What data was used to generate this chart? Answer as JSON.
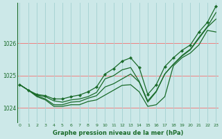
{
  "title": "Graphe pression niveau de la mer (hPa)",
  "bg_color": "#cce8e8",
  "grid_color_h": "#f08080",
  "grid_color_v": "#a8d4d4",
  "line_color": "#1a6b2a",
  "xlim": [
    -0.3,
    23.3
  ],
  "ylim": [
    1023.55,
    1027.25
  ],
  "yticks": [
    1024,
    1025,
    1026
  ],
  "xtick_labels": [
    "0",
    "1",
    "2",
    "3",
    "4",
    "5",
    "6",
    "7",
    "8",
    "9",
    "10",
    "11",
    "12",
    "13",
    "14",
    "15",
    "16",
    "17",
    "18",
    "19",
    "20",
    "21",
    "22",
    "23"
  ],
  "series": [
    [
      1024.72,
      1024.55,
      1024.35,
      1024.25,
      1024.05,
      1024.05,
      1024.1,
      1024.1,
      1024.2,
      1024.25,
      1024.4,
      1024.55,
      1024.7,
      1024.72,
      1024.5,
      1024.05,
      1024.1,
      1024.35,
      1025.3,
      1025.55,
      1025.7,
      1025.95,
      1026.4,
      1026.35
    ],
    [
      1024.72,
      1024.55,
      1024.38,
      1024.28,
      1024.1,
      1024.1,
      1024.18,
      1024.2,
      1024.3,
      1024.38,
      1024.65,
      1024.75,
      1024.9,
      1025.05,
      1024.8,
      1024.18,
      1024.5,
      1025.05,
      1025.35,
      1025.6,
      1025.8,
      1026.15,
      1026.5,
      1026.75
    ],
    [
      1024.72,
      1024.55,
      1024.4,
      1024.35,
      1024.22,
      1024.18,
      1024.25,
      1024.28,
      1024.35,
      1024.48,
      1024.9,
      1025.0,
      1025.18,
      1025.25,
      1024.82,
      1024.22,
      1024.52,
      1025.05,
      1025.35,
      1025.62,
      1025.82,
      1026.18,
      1026.52,
      1026.95
    ],
    [
      1024.72,
      1024.55,
      1024.42,
      1024.38,
      1024.28,
      1024.28,
      1024.35,
      1024.4,
      1024.5,
      1024.65,
      1025.05,
      1025.22,
      1025.45,
      1025.55,
      1025.25,
      1024.42,
      1024.72,
      1025.28,
      1025.55,
      1025.78,
      1025.95,
      1026.35,
      1026.65,
      1027.15
    ]
  ],
  "marker_series_idx": 3
}
